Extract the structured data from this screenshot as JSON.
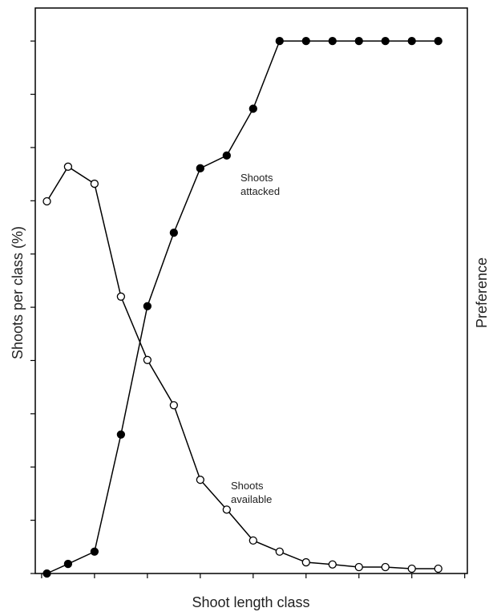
{
  "chart_data": {
    "type": "line",
    "x_label": "Shoot length class",
    "y_label": "Shoots per class (%)",
    "y2_label": "Preference",
    "x": [
      0.1,
      0.5,
      1,
      1.5,
      2,
      2.5,
      3,
      3.5,
      4,
      4.5,
      5,
      5.5,
      6,
      6.5,
      7,
      7.5
    ],
    "series": [
      {
        "name": "Shoots attacked",
        "color": "#000000",
        "marker": "filled",
        "values": [
          0,
          0.18,
          0.41,
          2.61,
          5.02,
          6.4,
          7.61,
          7.85,
          8.73,
          10,
          10,
          10,
          10,
          10,
          10,
          10
        ]
      },
      {
        "name": "Shoots available",
        "color": "#000000",
        "marker": "open",
        "values": [
          6.99,
          7.64,
          7.32,
          5.2,
          4.01,
          3.16,
          1.76,
          1.2,
          0.62,
          0.41,
          0.21,
          0.17,
          0.12,
          0.12,
          0.09,
          0.09
        ]
      }
    ],
    "xlim": [
      -0.12,
      8.05
    ],
    "xticks": [
      0,
      1,
      2,
      3,
      4,
      5,
      6,
      7,
      8
    ],
    "ylim": [
      0,
      10.62
    ],
    "yticks": [
      0,
      1,
      2,
      3,
      4,
      5,
      6,
      7,
      8,
      9,
      10
    ]
  }
}
